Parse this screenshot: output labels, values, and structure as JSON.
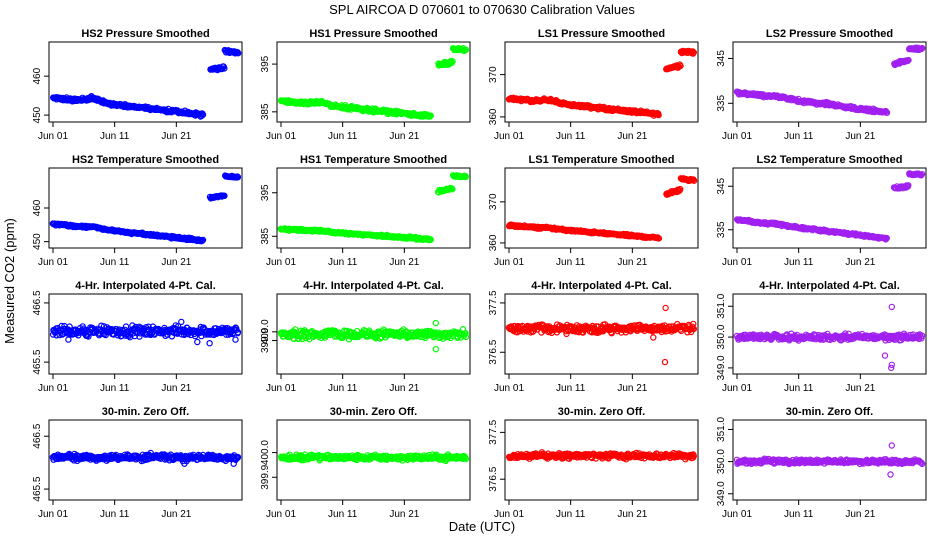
{
  "title": "SPL   AIRCOA D   070601 to 070630   Calibration Values",
  "ylabel": "Measured CO2 (ppm)",
  "xlabel": "Date (UTC)",
  "x_ticks": [
    {
      "day": 1,
      "label": "Jun 01"
    },
    {
      "day": 11,
      "label": "Jun 11"
    },
    {
      "day": 21,
      "label": "Jun 21"
    }
  ],
  "colors": {
    "HS2": "#0000ff",
    "HS1": "#00ff00",
    "LS1": "#ff0000",
    "LS2": "#a020f0"
  },
  "chart_data": [
    {
      "type": "scatter",
      "title": "HS2 Pressure Smoothed",
      "color": "#0000ff",
      "xlim": [
        1,
        31
      ],
      "ylim": [
        449,
        468
      ],
      "y_ticks": [
        {
          "v": 450,
          "label": "450"
        },
        {
          "v": 460,
          "label": "460"
        }
      ],
      "segments": [
        {
          "x0": 1,
          "x1": 25.3,
          "y0": 454.5,
          "y1": 450.1,
          "noise": 0.35,
          "bump": 1.0
        },
        {
          "x0": 26.5,
          "x1": 28.8,
          "y0": 461.8,
          "y1": 462.3,
          "noise": 0.3
        },
        {
          "x0": 28.9,
          "x1": 31.0,
          "y0": 466.4,
          "y1": 466.0,
          "noise": 0.35
        }
      ]
    },
    {
      "type": "scatter",
      "title": "HS1 Pressure Smoothed",
      "color": "#00ff00",
      "xlim": [
        1,
        31
      ],
      "ylim": [
        383.5,
        399
      ],
      "y_ticks": [
        {
          "v": 385,
          "label": "385"
        },
        {
          "v": 395,
          "label": "395"
        }
      ],
      "segments": [
        {
          "x0": 1,
          "x1": 25.3,
          "y0": 387.3,
          "y1": 384.1,
          "noise": 0.3,
          "bump": 0.6
        },
        {
          "x0": 26.5,
          "x1": 28.8,
          "y0": 394.8,
          "y1": 395.4,
          "noise": 0.3
        },
        {
          "x0": 28.9,
          "x1": 31.0,
          "y0": 398.2,
          "y1": 398.0,
          "noise": 0.3
        }
      ]
    },
    {
      "type": "scatter",
      "title": "LS1 Pressure Smoothed",
      "color": "#ff0000",
      "xlim": [
        1,
        31
      ],
      "ylim": [
        359.5,
        377
      ],
      "y_ticks": [
        {
          "v": 360,
          "label": "360"
        },
        {
          "v": 370,
          "label": "370"
        }
      ],
      "segments": [
        {
          "x0": 1,
          "x1": 25.3,
          "y0": 364.4,
          "y1": 360.6,
          "noise": 0.3,
          "bump": 0.6
        },
        {
          "x0": 26.5,
          "x1": 28.8,
          "y0": 371.4,
          "y1": 372.2,
          "noise": 0.3
        },
        {
          "x0": 28.9,
          "x1": 31.0,
          "y0": 375.5,
          "y1": 375.3,
          "noise": 0.3
        }
      ]
    },
    {
      "type": "scatter",
      "title": "LS2 Pressure Smoothed",
      "color": "#a020f0",
      "xlim": [
        1,
        31
      ],
      "ylim": [
        331.5,
        348
      ],
      "y_ticks": [
        {
          "v": 335,
          "label": "335"
        },
        {
          "v": 345,
          "label": "345"
        }
      ],
      "segments": [
        {
          "x0": 1,
          "x1": 25.3,
          "y0": 337.4,
          "y1": 333.0,
          "noise": 0.3,
          "bump": 0.3
        },
        {
          "x0": 26.5,
          "x1": 28.8,
          "y0": 343.8,
          "y1": 344.6,
          "noise": 0.3
        },
        {
          "x0": 28.9,
          "x1": 31.0,
          "y0": 347.2,
          "y1": 347.0,
          "noise": 0.3
        }
      ]
    },
    {
      "type": "scatter",
      "title": "HS2 Temperature Smoothed",
      "color": "#0000ff",
      "xlim": [
        1,
        31
      ],
      "ylim": [
        449,
        471
      ],
      "y_ticks": [
        {
          "v": 450,
          "label": "450"
        },
        {
          "v": 460,
          "label": "460"
        }
      ],
      "segments": [
        {
          "x0": 1,
          "x1": 25.3,
          "y0": 455.3,
          "y1": 450.3,
          "noise": 0.25,
          "bump": 0.4
        },
        {
          "x0": 26.5,
          "x1": 28.8,
          "y0": 463.1,
          "y1": 463.7,
          "noise": 0.25
        },
        {
          "x0": 28.9,
          "x1": 31.0,
          "y0": 469.4,
          "y1": 469.2,
          "noise": 0.25
        }
      ]
    },
    {
      "type": "scatter",
      "title": "HS1 Temperature Smoothed",
      "color": "#00ff00",
      "xlim": [
        1,
        31
      ],
      "ylim": [
        383,
        400
      ],
      "y_ticks": [
        {
          "v": 385,
          "label": "385"
        },
        {
          "v": 395,
          "label": "395"
        }
      ],
      "segments": [
        {
          "x0": 1,
          "x1": 25.3,
          "y0": 386.7,
          "y1": 384.3,
          "noise": 0.2,
          "bump": 0.2
        },
        {
          "x0": 26.5,
          "x1": 28.8,
          "y0": 395.3,
          "y1": 396.0,
          "noise": 0.25
        },
        {
          "x0": 28.9,
          "x1": 31.0,
          "y0": 398.9,
          "y1": 398.7,
          "noise": 0.25
        }
      ]
    },
    {
      "type": "scatter",
      "title": "LS1 Temperature Smoothed",
      "color": "#ff0000",
      "xlim": [
        1,
        31
      ],
      "ylim": [
        359.5,
        377.5
      ],
      "y_ticks": [
        {
          "v": 360,
          "label": "360"
        },
        {
          "v": 370,
          "label": "370"
        }
      ],
      "segments": [
        {
          "x0": 1,
          "x1": 25.3,
          "y0": 364.3,
          "y1": 361.2,
          "noise": 0.2,
          "bump": 0.2
        },
        {
          "x0": 26.5,
          "x1": 28.8,
          "y0": 372.0,
          "y1": 372.8,
          "noise": 0.25
        },
        {
          "x0": 28.9,
          "x1": 31.0,
          "y0": 375.6,
          "y1": 375.3,
          "noise": 0.25
        }
      ]
    },
    {
      "type": "scatter",
      "title": "LS2 Temperature Smoothed",
      "color": "#a020f0",
      "xlim": [
        1,
        31
      ],
      "ylim": [
        331.5,
        348.5
      ],
      "y_ticks": [
        {
          "v": 335,
          "label": "335"
        },
        {
          "v": 345,
          "label": "345"
        }
      ],
      "segments": [
        {
          "x0": 1,
          "x1": 25.3,
          "y0": 337.3,
          "y1": 333.0,
          "noise": 0.2,
          "bump": 0.2
        },
        {
          "x0": 26.5,
          "x1": 28.8,
          "y0": 344.5,
          "y1": 345.0,
          "noise": 0.25
        },
        {
          "x0": 28.9,
          "x1": 31.0,
          "y0": 347.8,
          "y1": 347.6,
          "noise": 0.2
        }
      ]
    },
    {
      "type": "scatter",
      "title": "4-Hr. Interpolated 4-Pt. Cal.",
      "color": "#0000ff",
      "xlim": [
        1,
        31
      ],
      "ylim": [
        465.35,
        466.6
      ],
      "y_ticks": [
        {
          "v": 465.5,
          "label": "465.5"
        },
        {
          "v": 466.5,
          "label": "466.5"
        }
      ],
      "segments": [
        {
          "x0": 1,
          "x1": 31,
          "y0": 466.02,
          "y1": 466.02,
          "noise": 0.07
        }
      ],
      "outliers": [
        [
          3.5,
          465.88
        ],
        [
          24.4,
          465.84
        ],
        [
          26.4,
          465.82
        ],
        [
          30.6,
          465.88
        ],
        [
          21.8,
          466.18
        ]
      ]
    },
    {
      "type": "scatter",
      "title": "4-Hr. Interpolated 4-Pt. Cal.",
      "color": "#00ff00",
      "xlim": [
        1,
        31
      ],
      "ylim": [
        399.55,
        400.4
      ],
      "y_ticks": [
        {
          "v": 399.9,
          "label": "399.9"
        },
        {
          "v": 400.0,
          "label": "400.0"
        }
      ],
      "segments": [
        {
          "x0": 1,
          "x1": 31,
          "y0": 399.97,
          "y1": 399.97,
          "noise": 0.04
        }
      ],
      "outliers": [
        [
          26.1,
          400.1
        ],
        [
          26.1,
          399.8
        ],
        [
          3.1,
          399.92
        ]
      ]
    },
    {
      "type": "scatter",
      "title": "4-Hr. Interpolated 4-Pt. Cal.",
      "color": "#ff0000",
      "xlim": [
        1,
        31
      ],
      "ylim": [
        376.12,
        377.62
      ],
      "y_ticks": [
        {
          "v": 376.5,
          "label": "376.5"
        },
        {
          "v": 377.5,
          "label": "377.5"
        }
      ],
      "segments": [
        {
          "x0": 1,
          "x1": 31,
          "y0": 376.98,
          "y1": 376.98,
          "noise": 0.07
        }
      ],
      "outliers": [
        [
          26.4,
          377.4
        ],
        [
          26.3,
          376.3
        ],
        [
          24.4,
          376.8
        ]
      ]
    },
    {
      "type": "scatter",
      "title": "4-Hr. Interpolated 4-Pt. Cal.",
      "color": "#a020f0",
      "xlim": [
        1,
        31
      ],
      "ylim": [
        348.9,
        351.3
      ],
      "y_ticks": [
        {
          "v": 349.0,
          "label": "349.0"
        },
        {
          "v": 350.0,
          "label": "350.0"
        },
        {
          "v": 351.0,
          "label": "351.0"
        }
      ],
      "segments": [
        {
          "x0": 1,
          "x1": 31,
          "y0": 350.0,
          "y1": 350.0,
          "noise": 0.08
        }
      ],
      "outliers": [
        [
          26.1,
          350.98
        ],
        [
          25.0,
          349.4
        ],
        [
          26.1,
          349.1
        ],
        [
          26.0,
          349.0
        ]
      ]
    },
    {
      "type": "scatter",
      "title": "30-min. Zero Off.",
      "color": "#0000ff",
      "xlim": [
        1,
        31
      ],
      "ylim": [
        465.35,
        466.75
      ],
      "y_ticks": [
        {
          "v": 465.5,
          "label": "465.5"
        },
        {
          "v": 466.5,
          "label": "466.5"
        }
      ],
      "segments": [
        {
          "x0": 1,
          "x1": 31,
          "y0": 466.1,
          "y1": 466.1,
          "noise": 0.05
        }
      ],
      "outliers": [
        [
          30.3,
          465.98
        ],
        [
          22.3,
          465.98
        ]
      ]
    },
    {
      "type": "scatter",
      "title": "30-min. Zero Off.",
      "color": "#00ff00",
      "xlim": [
        1,
        31
      ],
      "ylim": [
        399.82,
        400.12
      ],
      "y_ticks": [
        {
          "v": 399.9,
          "label": "399.9"
        },
        {
          "v": 400.0,
          "label": "400.0"
        }
      ],
      "segments": [
        {
          "x0": 1,
          "x1": 31,
          "y0": 399.98,
          "y1": 399.98,
          "noise": 0.009
        }
      ],
      "outliers": []
    },
    {
      "type": "scatter",
      "title": "30-min. Zero Off.",
      "color": "#ff0000",
      "xlim": [
        1,
        31
      ],
      "ylim": [
        376.12,
        377.7
      ],
      "y_ticks": [
        {
          "v": 376.5,
          "label": "376.5"
        },
        {
          "v": 377.5,
          "label": "377.5"
        }
      ],
      "segments": [
        {
          "x0": 1,
          "x1": 31,
          "y0": 377.0,
          "y1": 377.0,
          "noise": 0.05
        }
      ],
      "outliers": []
    },
    {
      "type": "scatter",
      "title": "30-min. Zero Off.",
      "color": "#a020f0",
      "xlim": [
        1,
        31
      ],
      "ylim": [
        348.9,
        351.2
      ],
      "y_ticks": [
        {
          "v": 349.0,
          "label": "349.0"
        },
        {
          "v": 350.0,
          "label": "350.0"
        },
        {
          "v": 351.0,
          "label": "351.0"
        }
      ],
      "segments": [
        {
          "x0": 1,
          "x1": 31,
          "y0": 350.0,
          "y1": 350.0,
          "noise": 0.06
        }
      ],
      "outliers": [
        [
          26.1,
          350.5
        ],
        [
          25.9,
          349.6
        ]
      ]
    }
  ]
}
